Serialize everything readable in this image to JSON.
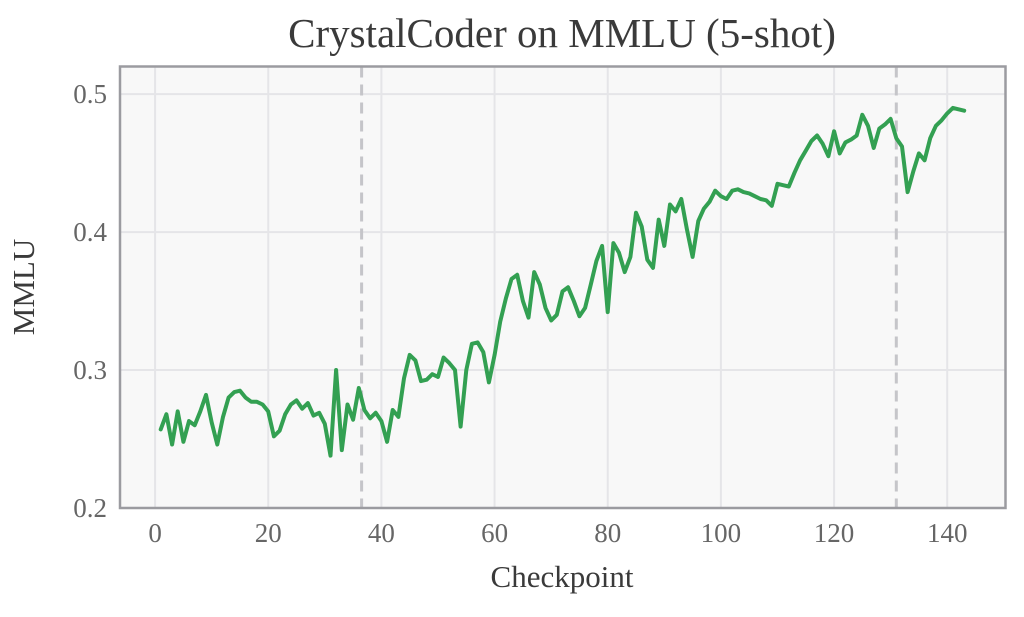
{
  "title": "CrystalCoder on MMLU (5-shot)",
  "colors": {
    "line": "#33a052",
    "plot_bg": "#f8f8f8",
    "grid": "#e5e5e8",
    "spine": "#9b9ba0",
    "dashed_marker": "#c5c5c9",
    "title_text": "#3a3a3a",
    "axis_label_text": "#3a3a3a",
    "tick_text": "#666666",
    "page_bg": "#ffffff"
  },
  "chart_data": {
    "type": "line",
    "title": "CrystalCoder on MMLU (5-shot)",
    "xlabel": "Checkpoint",
    "ylabel": "MMLU",
    "xlim": [
      -6.2,
      150.3
    ],
    "ylim": [
      0.2,
      0.52
    ],
    "xticks": [
      0,
      20,
      40,
      60,
      80,
      100,
      120,
      140
    ],
    "yticks": [
      0.2,
      0.3,
      0.4,
      0.5
    ],
    "grid": true,
    "legend": "none",
    "vlines": [
      36.5,
      131
    ],
    "series": [
      {
        "name": "MMLU (5-shot)",
        "x_start": 1,
        "values": [
          0.257,
          0.268,
          0.246,
          0.27,
          0.248,
          0.263,
          0.26,
          0.27,
          0.282,
          0.262,
          0.246,
          0.266,
          0.28,
          0.284,
          0.285,
          0.28,
          0.277,
          0.277,
          0.275,
          0.27,
          0.252,
          0.256,
          0.268,
          0.275,
          0.278,
          0.272,
          0.276,
          0.267,
          0.269,
          0.261,
          0.238,
          0.3,
          0.242,
          0.275,
          0.264,
          0.287,
          0.271,
          0.265,
          0.269,
          0.263,
          0.248,
          0.271,
          0.266,
          0.294,
          0.311,
          0.307,
          0.292,
          0.293,
          0.297,
          0.295,
          0.309,
          0.305,
          0.3,
          0.259,
          0.3,
          0.319,
          0.32,
          0.313,
          0.291,
          0.311,
          0.335,
          0.352,
          0.366,
          0.369,
          0.35,
          0.338,
          0.371,
          0.362,
          0.345,
          0.336,
          0.34,
          0.357,
          0.36,
          0.35,
          0.339,
          0.345,
          0.362,
          0.379,
          0.39,
          0.342,
          0.392,
          0.385,
          0.371,
          0.382,
          0.414,
          0.404,
          0.38,
          0.374,
          0.409,
          0.39,
          0.42,
          0.415,
          0.424,
          0.402,
          0.382,
          0.408,
          0.417,
          0.422,
          0.43,
          0.426,
          0.424,
          0.43,
          0.431,
          0.429,
          0.428,
          0.426,
          0.424,
          0.423,
          0.419,
          0.435,
          0.434,
          0.433,
          0.443,
          0.452,
          0.459,
          0.466,
          0.47,
          0.464,
          0.455,
          0.473,
          0.457,
          0.465,
          0.467,
          0.47,
          0.485,
          0.477,
          0.461,
          0.475,
          0.478,
          0.482,
          0.468,
          0.462,
          0.429,
          0.444,
          0.457,
          0.452,
          0.468,
          0.477,
          0.481,
          0.486,
          0.49,
          0.489,
          0.488
        ]
      }
    ]
  }
}
